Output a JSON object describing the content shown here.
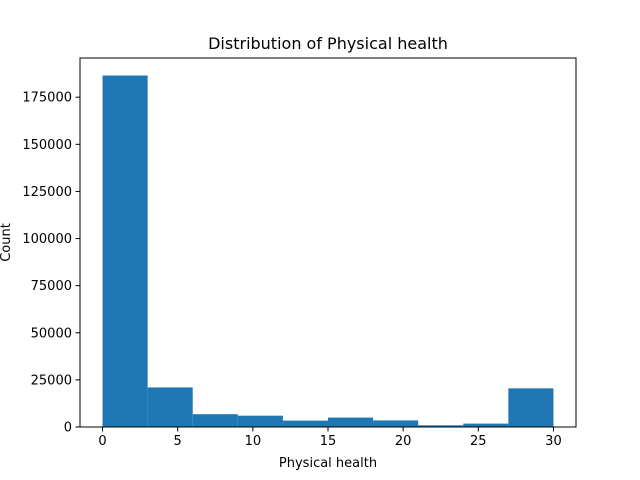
{
  "chart_data": {
    "type": "bar",
    "title": "Distribution of Physical health",
    "xlabel": "Physical health",
    "ylabel": "Count",
    "bin_edges": [
      0,
      3,
      6,
      9,
      12,
      15,
      18,
      21,
      24,
      27,
      30
    ],
    "values": [
      186500,
      21000,
      6800,
      6000,
      3400,
      5000,
      3500,
      900,
      1800,
      20500
    ],
    "xlim": [
      -1.5,
      31.5
    ],
    "ylim": [
      0,
      195800
    ],
    "xticks": [
      0,
      5,
      10,
      15,
      20,
      25,
      30
    ],
    "yticks": [
      0,
      25000,
      50000,
      75000,
      100000,
      125000,
      150000,
      175000
    ],
    "bar_color": "#1f77b4",
    "grid": false,
    "legend": "none"
  }
}
